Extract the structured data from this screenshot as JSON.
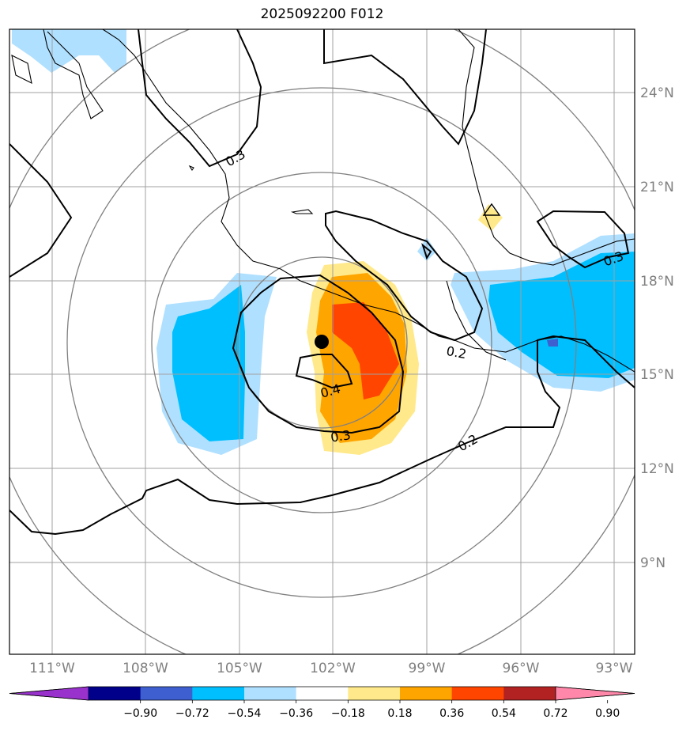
{
  "title": "2025092200 F012",
  "lat_labels": [
    "24°N",
    "21°N",
    "18°N",
    "15°N",
    "12°N",
    "9°N"
  ],
  "lon_labels": [
    "111°W",
    "108°W",
    "105°W",
    "102°W",
    "99°W",
    "96°W",
    "93°W"
  ],
  "contour_labels": [
    "0.3",
    "0.3",
    "0.2",
    "0.4",
    "0.3",
    "0.2"
  ],
  "colorbar": {
    "ticks": [
      "−0.90",
      "−0.72",
      "−0.54",
      "−0.36",
      "−0.18",
      "0.18",
      "0.36",
      "0.54",
      "0.72",
      "0.90"
    ],
    "colors": [
      "#9932cc",
      "#00008b",
      "#3d5fcf",
      "#00bfff",
      "#b0e0ff",
      "#ffffff",
      "#ffe98a",
      "#ffa500",
      "#ff4500",
      "#b22222",
      "#ff88aa"
    ]
  },
  "storm_center": {
    "lat": 16.0,
    "lon": -102.3
  },
  "colors": {
    "coast": "#000000",
    "grid": "#a0a0a0",
    "range_rings": "#808080",
    "contour": "#000000"
  }
}
